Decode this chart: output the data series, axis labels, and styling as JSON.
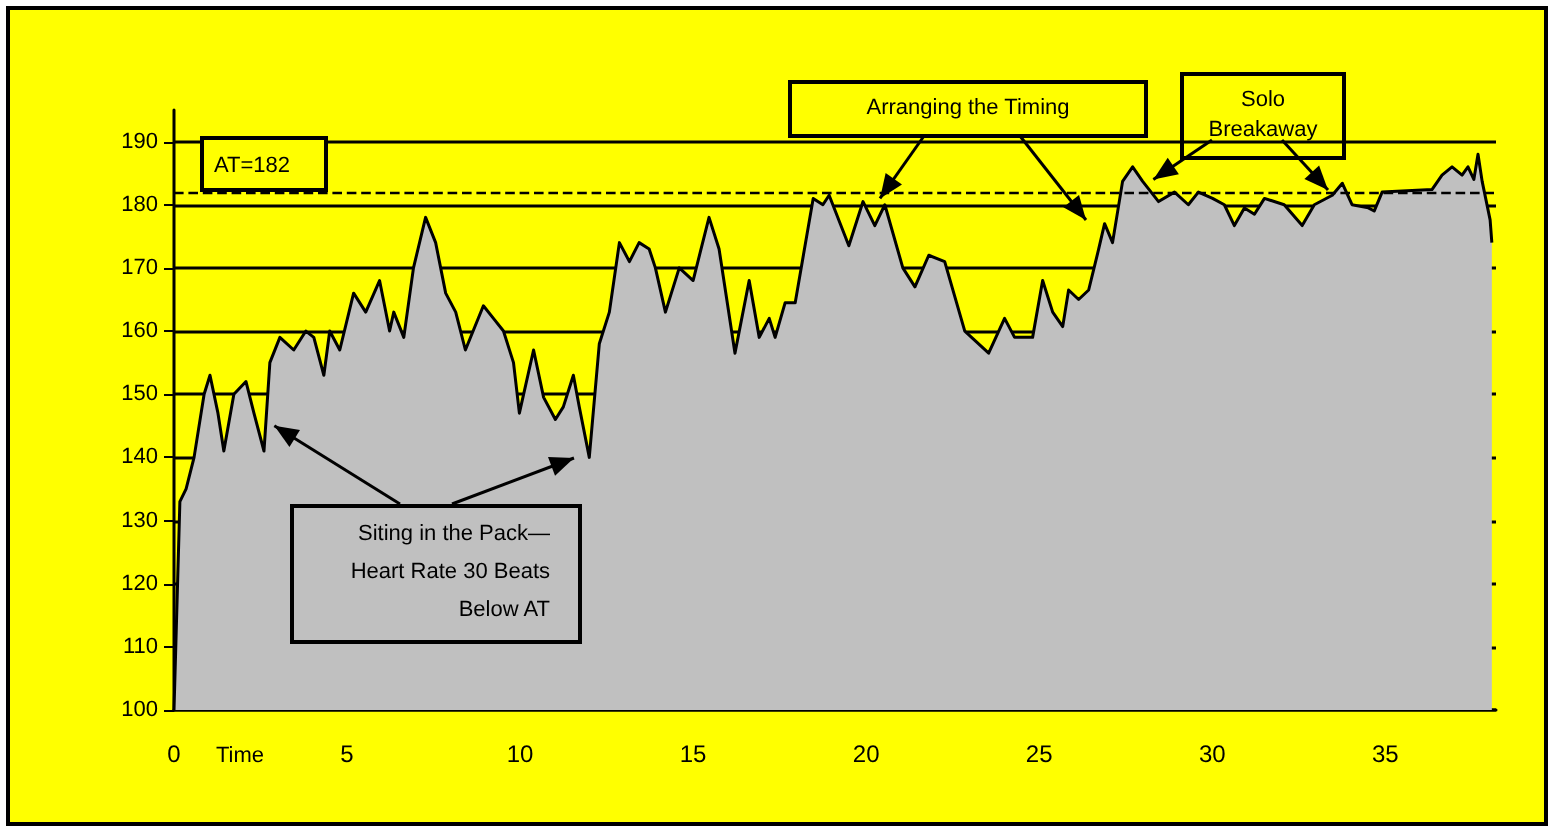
{
  "chart_data": {
    "type": "area",
    "xlabel": "Time",
    "color": "#c0c0c0",
    "x": [
      0,
      0.17,
      0.35,
      0.58,
      0.87,
      1.04,
      1.27,
      1.44,
      1.73,
      2.08,
      2.31,
      2.6,
      2.77,
      3.06,
      3.46,
      3.81,
      4.04,
      4.33,
      4.5,
      4.79,
      5.19,
      5.54,
      5.94,
      6.23,
      6.35,
      6.64,
      6.92,
      7.27,
      7.56,
      7.85,
      8.14,
      8.42,
      8.94,
      9.23,
      9.52,
      9.81,
      9.98,
      10.39,
      10.68,
      11.02,
      11.25,
      11.54,
      11.71,
      12.0,
      12.29,
      12.58,
      12.87,
      13.16,
      13.44,
      13.73,
      13.91,
      14.2,
      14.6,
      15.0,
      15.46,
      15.75,
      16.21,
      16.62,
      16.91,
      17.2,
      17.37,
      17.66,
      17.95,
      18.47,
      18.75,
      18.93,
      19.5,
      19.91,
      20.25,
      20.54,
      21.06,
      21.41,
      21.81,
      22.27,
      22.85,
      23.54,
      24.0,
      24.29,
      24.81,
      25.1,
      25.39,
      25.68,
      25.85,
      26.14,
      26.43,
      26.72,
      26.89,
      27.12,
      27.41,
      27.7,
      27.99,
      28.45,
      28.91,
      29.31,
      29.6,
      30.01,
      30.35,
      30.64,
      30.93,
      31.22,
      31.51,
      32.08,
      32.6,
      32.95,
      33.47,
      33.76,
      34.04,
      34.51,
      34.68,
      34.91,
      36.35,
      36.64,
      36.93,
      37.22,
      37.39,
      37.56,
      37.68,
      37.8,
      38.03,
      38.08
    ],
    "values": [
      100,
      133,
      135,
      140,
      150,
      153,
      147,
      141,
      150,
      152,
      147,
      141,
      155,
      159,
      157,
      160,
      159,
      153,
      160,
      157,
      166,
      163,
      168,
      160,
      163,
      159,
      170,
      178,
      174,
      166,
      163,
      157,
      164,
      162,
      160,
      155,
      147,
      157,
      149.5,
      146,
      148,
      153,
      148,
      140,
      158,
      163,
      174,
      171,
      174,
      173,
      170,
      163,
      170,
      168,
      178,
      173,
      156.5,
      168,
      159,
      162,
      159,
      164.5,
      164.5,
      181,
      180,
      181.5,
      173.5,
      180.5,
      176.7,
      180,
      170,
      167,
      172,
      171,
      160,
      156.5,
      162,
      159,
      159,
      168,
      163,
      160.7,
      166.5,
      165,
      166.5,
      173,
      177,
      174,
      183.7,
      186,
      183.7,
      180.5,
      182,
      180,
      182,
      181,
      180,
      176.7,
      179.5,
      178.5,
      181,
      180,
      176.7,
      180,
      181.5,
      183.4,
      180,
      179.5,
      179,
      182,
      182.4,
      184.7,
      186,
      184.7,
      186,
      184,
      188,
      183.7,
      177.6,
      174
    ],
    "xlim": [
      0,
      38.2
    ],
    "xticks": [
      0,
      5,
      10,
      15,
      20,
      25,
      30,
      35
    ],
    "ylim": [
      100,
      195
    ],
    "yticks": [
      100,
      110,
      120,
      130,
      140,
      150,
      160,
      170,
      180,
      190
    ],
    "grid": "y",
    "marker": "none",
    "ref_lines": [
      {
        "axis": "y",
        "value": 182,
        "label": "AT=182",
        "line_style": "dashed",
        "color": "#000000"
      }
    ],
    "annotations": [
      {
        "text": "Arranging the Timing",
        "x": 20.4,
        "y": 181
      },
      {
        "text": "Solo Breakaway",
        "x": 28.3,
        "y": 184
      },
      {
        "text": "Siting in the Pack—Heart Rate 30 Beats Below AT",
        "x": 2.9,
        "y": 145
      }
    ]
  }
}
